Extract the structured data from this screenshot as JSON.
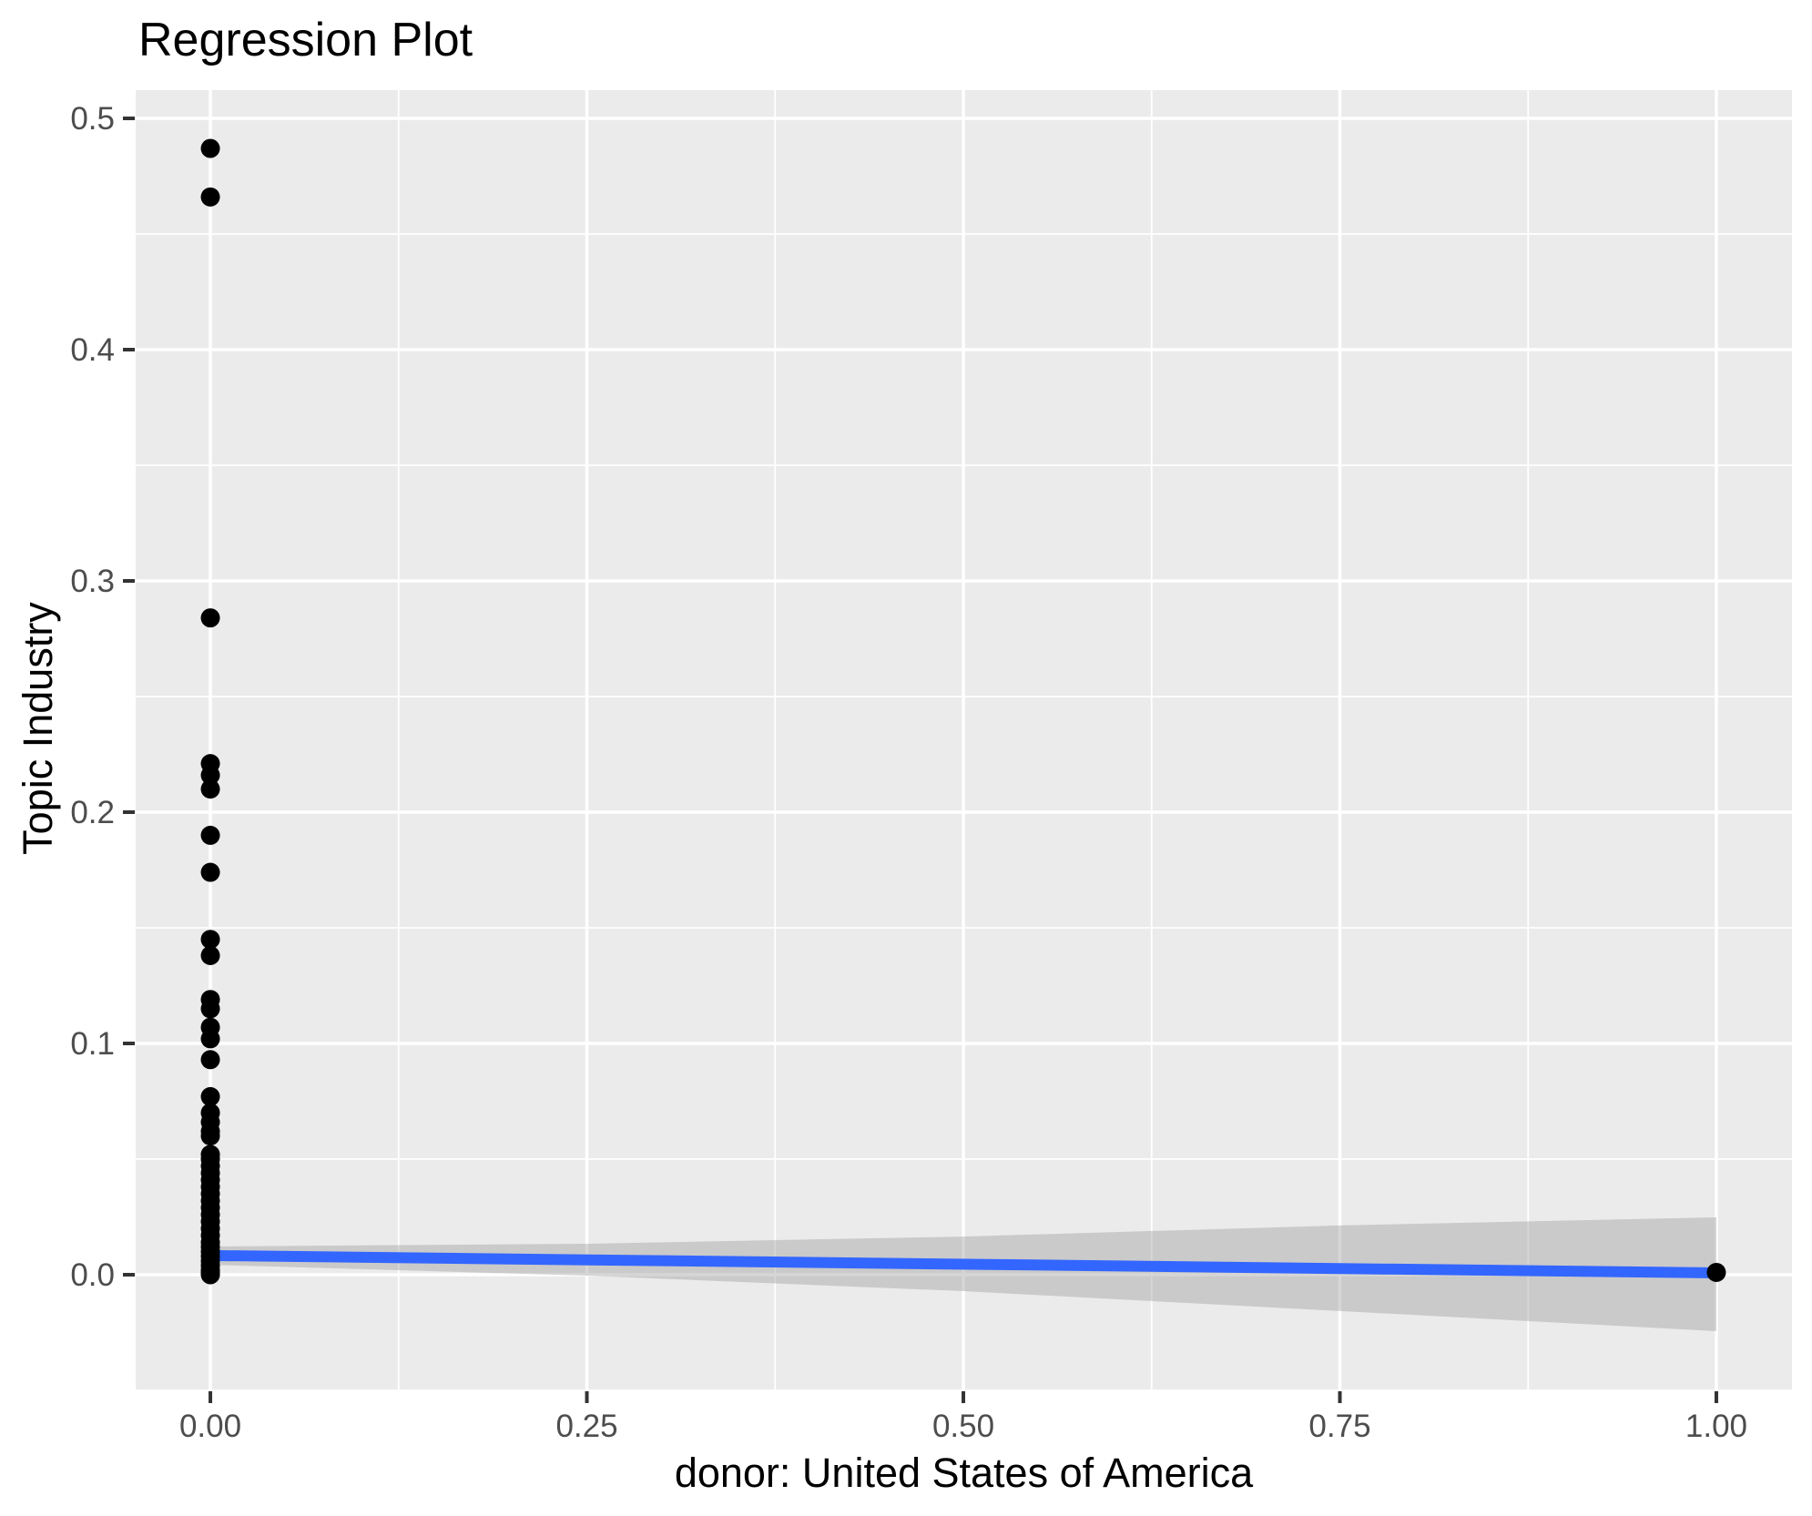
{
  "page": {
    "background": "#FFFFFF"
  },
  "chart_data": {
    "type": "scatter",
    "title": "Regression Plot",
    "xlabel": "donor: United States of America",
    "ylabel": "Topic Industry",
    "xlim": [
      -0.0496,
      1.0502
    ],
    "ylim": [
      -0.05,
      0.5122
    ],
    "x_tick_values": [
      0,
      0.25,
      0.5,
      0.75,
      1
    ],
    "x_tick_labels": [
      "0.00",
      "0.25",
      "0.50",
      "0.75",
      "1.00"
    ],
    "y_tick_values": [
      0,
      0.1,
      0.2,
      0.3,
      0.4,
      0.5
    ],
    "y_tick_labels": [
      "0.0",
      "0.1",
      "0.2",
      "0.3",
      "0.4",
      "0.5"
    ],
    "grid": true,
    "legend": false,
    "panel_background": "#EBEBEB",
    "gridline_color": "#FFFFFF",
    "tick_label_color": "#4D4D4D",
    "tick_mark_color": "#333333",
    "point_color": "#000000",
    "point_radius": 10.5,
    "series": [
      {
        "name": "observations",
        "kind": "points",
        "color": "#000000",
        "x": [
          0,
          0,
          0,
          0,
          0,
          0,
          0,
          0,
          0,
          0,
          0,
          0,
          0,
          0,
          0,
          0,
          0,
          0,
          0,
          0,
          0,
          0,
          0,
          0,
          0,
          0,
          0,
          0,
          0,
          0,
          0,
          0,
          0,
          0,
          0,
          0,
          0,
          0,
          0,
          0,
          0,
          0,
          1
        ],
        "y": [
          0.487,
          0.466,
          0.284,
          0.221,
          0.216,
          0.21,
          0.19,
          0.174,
          0.145,
          0.138,
          0.119,
          0.115,
          0.107,
          0.102,
          0.093,
          0.077,
          0.07,
          0.066,
          0.062,
          0.06,
          0.052,
          0.05,
          0.047,
          0.044,
          0.041,
          0.038,
          0.035,
          0.032,
          0.029,
          0.026,
          0.023,
          0.02,
          0.017,
          0.014,
          0.012,
          0.01,
          0.008,
          0.006,
          0.004,
          0.002,
          0.001,
          0.0,
          0.001
        ]
      },
      {
        "name": "regression-line",
        "kind": "line",
        "color": "#3366FF",
        "width": 12,
        "x": [
          0,
          1
        ],
        "y": [
          0.0083,
          0.0008
        ]
      },
      {
        "name": "confidence-band",
        "kind": "band",
        "color": "#999999",
        "opacity": 0.4,
        "x": [
          0,
          0.25,
          0.5,
          0.75,
          1
        ],
        "upper": [
          0.0122,
          0.0134,
          0.0165,
          0.0213,
          0.0248
        ],
        "lower": [
          0.0043,
          -0.0004,
          -0.0071,
          -0.0157,
          -0.0244
        ]
      }
    ]
  }
}
